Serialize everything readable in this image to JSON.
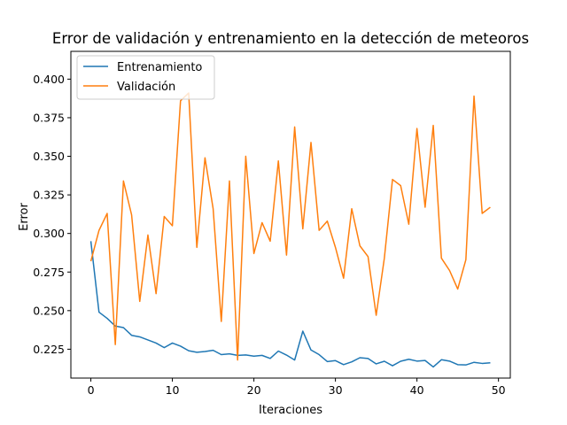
{
  "chart_data": {
    "type": "line",
    "title": "Error de validación y entrenamiento en la detección de meteoros",
    "xlabel": "Iteraciones",
    "ylabel": "Error",
    "xlim": [
      -2.45,
      51.45
    ],
    "ylim": [
      0.2063,
      0.418
    ],
    "xticks": [
      0,
      10,
      20,
      30,
      40,
      50
    ],
    "yticks": [
      0.225,
      0.25,
      0.275,
      0.3,
      0.325,
      0.35,
      0.375,
      0.4
    ],
    "ytick_labels": [
      "0.225",
      "0.250",
      "0.275",
      "0.300",
      "0.325",
      "0.350",
      "0.375",
      "0.400"
    ],
    "grid": false,
    "legend_position": "top-left",
    "x": [
      0,
      1,
      2,
      3,
      4,
      5,
      6,
      7,
      8,
      9,
      10,
      11,
      12,
      13,
      14,
      15,
      16,
      17,
      18,
      19,
      20,
      21,
      22,
      23,
      24,
      25,
      26,
      27,
      28,
      29,
      30,
      31,
      32,
      33,
      34,
      35,
      36,
      37,
      38,
      39,
      40,
      41,
      42,
      43,
      44,
      45,
      46,
      47,
      48,
      49
    ],
    "series": [
      {
        "name": "Entrenamiento",
        "color": "#1f77b4",
        "values": [
          0.295,
          0.249,
          0.245,
          0.24,
          0.239,
          0.234,
          0.233,
          0.231,
          0.229,
          0.226,
          0.229,
          0.227,
          0.224,
          0.223,
          0.2235,
          0.2243,
          0.2215,
          0.222,
          0.221,
          0.2213,
          0.2205,
          0.221,
          0.219,
          0.2238,
          0.2212,
          0.218,
          0.2367,
          0.2245,
          0.2215,
          0.217,
          0.2176,
          0.215,
          0.2168,
          0.2195,
          0.219,
          0.2155,
          0.2172,
          0.2143,
          0.2172,
          0.2185,
          0.2173,
          0.2177,
          0.2135,
          0.2182,
          0.2173,
          0.215,
          0.2148,
          0.2165,
          0.2158,
          0.2162
        ]
      },
      {
        "name": "Validación",
        "color": "#ff7f0e",
        "values": [
          0.282,
          0.302,
          0.313,
          0.228,
          0.334,
          0.312,
          0.256,
          0.299,
          0.261,
          0.311,
          0.305,
          0.386,
          0.391,
          0.291,
          0.349,
          0.316,
          0.243,
          0.334,
          0.218,
          0.35,
          0.287,
          0.307,
          0.295,
          0.347,
          0.286,
          0.369,
          0.303,
          0.359,
          0.302,
          0.308,
          0.291,
          0.271,
          0.316,
          0.292,
          0.285,
          0.247,
          0.284,
          0.335,
          0.331,
          0.306,
          0.368,
          0.317,
          0.37,
          0.284,
          0.276,
          0.264,
          0.283,
          0.389,
          0.313,
          0.317
        ]
      }
    ]
  }
}
